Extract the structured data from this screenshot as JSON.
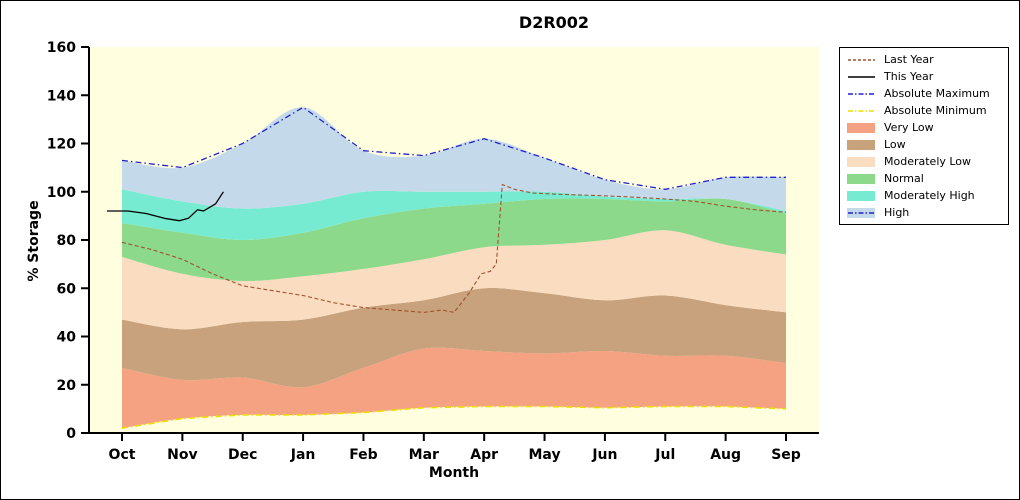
{
  "chart_data": {
    "type": "area",
    "title": "D2R002",
    "xlabel": "Month",
    "ylabel": "% Storage",
    "ylim": [
      0,
      160
    ],
    "yticks": [
      0,
      20,
      40,
      60,
      80,
      100,
      120,
      140,
      160
    ],
    "categories": [
      "Oct",
      "Nov",
      "Dec",
      "Jan",
      "Feb",
      "Mar",
      "Apr",
      "May",
      "Jun",
      "Jul",
      "Aug",
      "Sep"
    ],
    "plot_bg": "#FFFFE0",
    "axis_color": "#000000",
    "baseline": [
      2,
      6,
      7.5,
      7.5,
      8.5,
      10.5,
      11,
      11,
      10.5,
      11,
      11,
      10
    ],
    "bands": [
      {
        "name": "Very Low",
        "color": "#F5A283",
        "top": [
          27,
          22,
          23,
          19,
          27,
          35,
          34,
          33,
          34,
          32,
          32,
          29
        ]
      },
      {
        "name": "Low",
        "color": "#C8A27C",
        "top": [
          47,
          43,
          46,
          47,
          52,
          55,
          60,
          58,
          55,
          57,
          53,
          50
        ]
      },
      {
        "name": "Moderately Low",
        "color": "#FADCC0",
        "top": [
          73,
          66,
          63,
          65,
          68,
          72,
          77,
          78,
          80,
          84,
          78,
          74
        ]
      },
      {
        "name": "Normal",
        "color": "#8CD98C",
        "top": [
          87,
          83,
          80,
          83,
          89,
          93,
          95,
          97,
          97,
          96,
          97,
          91
        ]
      },
      {
        "name": "Moderately High",
        "color": "#76EBD2",
        "top": [
          101,
          96,
          93,
          95,
          100,
          100,
          100,
          100,
          98,
          97,
          97,
          92
        ]
      },
      {
        "name": "High",
        "color": "#C4DAEB",
        "top": [
          113,
          110,
          120,
          135,
          117,
          115,
          122,
          114,
          105,
          101,
          106,
          106
        ]
      }
    ],
    "lines": [
      {
        "name": "Absolute Maximum",
        "color": "#2222CC",
        "width": 1.3,
        "dash": "6 3 1.5 3",
        "x": [
          0,
          1,
          2,
          3,
          4,
          5,
          6,
          7,
          8,
          9,
          10,
          11
        ],
        "y": [
          113,
          110,
          120,
          135,
          117,
          115,
          122,
          114,
          105,
          101,
          106,
          106
        ]
      },
      {
        "name": "Absolute Minimum",
        "color": "#EEDD00",
        "width": 1.6,
        "dash": "6 3 1.5 3",
        "x": [
          0,
          1,
          2,
          3,
          4,
          5,
          6,
          7,
          8,
          9,
          10,
          11
        ],
        "y": [
          2,
          6,
          7.5,
          7.5,
          8.5,
          10.5,
          11,
          11,
          10.5,
          11,
          11,
          10
        ]
      },
      {
        "name": "Last Year",
        "color": "#A0522D",
        "width": 1.1,
        "dash": "4 2.5",
        "x": [
          0,
          0.5,
          1,
          1.5,
          2,
          2.5,
          3,
          3.5,
          4,
          4.5,
          5,
          5.3,
          5.5,
          5.75,
          5.95,
          6.1,
          6.2,
          6.3,
          6.5,
          6.8,
          7.2,
          7.8,
          8.3,
          9,
          9.5,
          10,
          10.5,
          11
        ],
        "y": [
          79,
          76,
          72,
          66,
          61,
          59,
          57,
          54,
          52,
          51,
          50,
          51,
          50,
          58,
          66,
          67,
          70,
          103,
          101,
          99.5,
          99,
          98.5,
          98,
          97,
          96,
          94,
          92.5,
          91.5
        ]
      },
      {
        "name": "This Year",
        "color": "#000000",
        "width": 1.3,
        "dash": "",
        "x": [
          -0.25,
          0.1,
          0.4,
          0.7,
          0.95,
          1.1,
          1.25,
          1.35,
          1.45,
          1.55,
          1.68
        ],
        "y": [
          92,
          92,
          91,
          89,
          88,
          89,
          92.5,
          92,
          93.5,
          95,
          100
        ]
      }
    ],
    "legend": [
      {
        "label": "Last Year",
        "sample": "line",
        "color": "#A0522D",
        "dash": "3 2"
      },
      {
        "label": "This Year",
        "sample": "line",
        "color": "#000000",
        "dash": ""
      },
      {
        "label": "Absolute Maximum",
        "sample": "line",
        "color": "#2222CC",
        "dash": "5 2 1.5 2"
      },
      {
        "label": "Absolute Minimum",
        "sample": "line",
        "color": "#EEDD00",
        "dash": "5 2 1.5 2"
      },
      {
        "label": "Very Low",
        "sample": "patch",
        "color": "#F5A283"
      },
      {
        "label": "Low",
        "sample": "patch",
        "color": "#C8A27C"
      },
      {
        "label": "Moderately Low",
        "sample": "patch",
        "color": "#FADCC0"
      },
      {
        "label": "Normal",
        "sample": "patch",
        "color": "#8CD98C"
      },
      {
        "label": "Moderately High",
        "sample": "patch",
        "color": "#76EBD2"
      },
      {
        "label": "High",
        "sample": "patch_line",
        "color": "#C4DAEB",
        "line_color": "#2222CC",
        "dash": "5 2 1.5 2"
      }
    ]
  }
}
